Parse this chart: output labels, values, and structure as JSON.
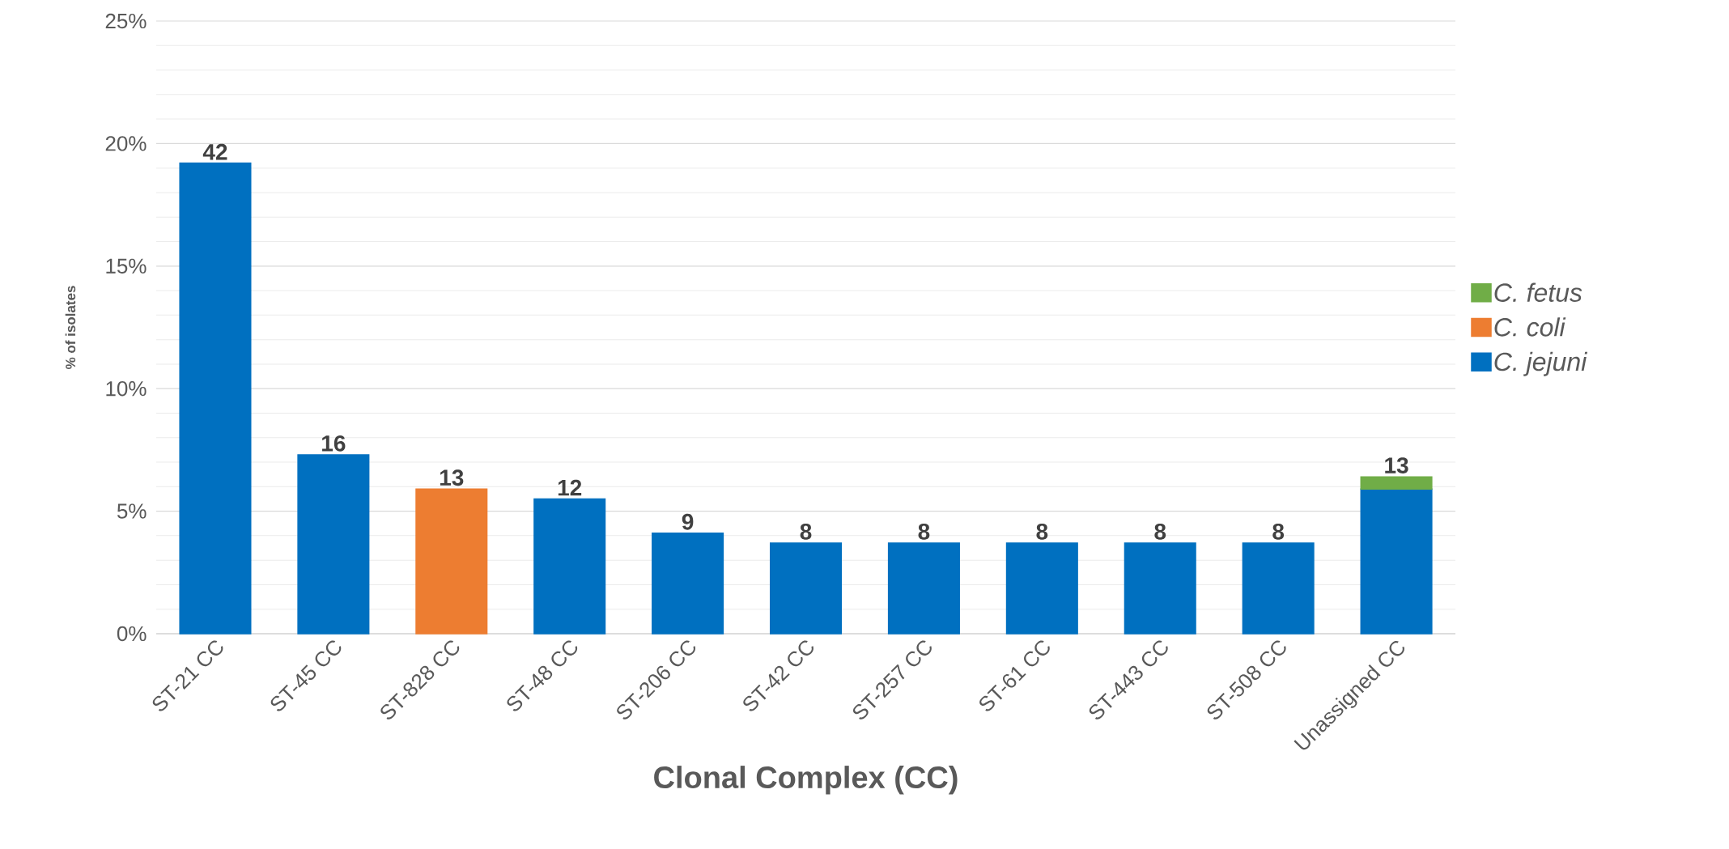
{
  "chart_data": {
    "type": "bar",
    "stacked": true,
    "xlabel": "Clonal Complex (CC)",
    "ylabel": "% of isolates",
    "categories": [
      "ST-21 CC",
      "ST-45 CC",
      "ST-828 CC",
      "ST-48 CC",
      "ST-206 CC",
      "ST-42 CC",
      "ST-257 CC",
      "ST-61 CC",
      "ST-443 CC",
      "ST-508 CC",
      "Unassigned CC"
    ],
    "series": [
      {
        "name": "C. jejuni",
        "color": "#0070c0",
        "values": [
          19.2,
          7.3,
          null,
          5.5,
          4.1,
          3.7,
          3.7,
          3.7,
          3.7,
          3.7,
          5.9
        ]
      },
      {
        "name": "C. coli",
        "color": "#ed7d31",
        "values": [
          null,
          null,
          5.9,
          null,
          null,
          null,
          null,
          null,
          null,
          null,
          null
        ]
      },
      {
        "name": "C. fetus",
        "color": "#70ad47",
        "values": [
          null,
          null,
          null,
          null,
          null,
          null,
          null,
          null,
          null,
          null,
          0.5
        ]
      }
    ],
    "annotations": [
      {
        "text": "42",
        "x": "ST-21 CC",
        "y": 19.2
      },
      {
        "text": "16",
        "x": "ST-45 CC",
        "y": 7.3
      },
      {
        "text": "13",
        "x": "ST-828 CC",
        "y": 5.9
      },
      {
        "text": "12",
        "x": "ST-48 CC",
        "y": 5.5
      },
      {
        "text": "9",
        "x": "ST-206 CC",
        "y": 4.1
      },
      {
        "text": "8",
        "x": "ST-42 CC",
        "y": 3.7
      },
      {
        "text": "8",
        "x": "ST-257 CC",
        "y": 3.7
      },
      {
        "text": "8",
        "x": "ST-61 CC",
        "y": 3.7
      },
      {
        "text": "8",
        "x": "ST-443 CC",
        "y": 3.7
      },
      {
        "text": "8",
        "x": "ST-508 CC",
        "y": 3.7
      },
      {
        "text": "13",
        "x": "Unassigned CC",
        "y": 6.4
      }
    ],
    "ylim": [
      0,
      25
    ],
    "yticks": [
      {
        "value": 0,
        "label": "0%"
      },
      {
        "value": 5,
        "label": "5%"
      },
      {
        "value": 10,
        "label": "10%"
      },
      {
        "value": 15,
        "label": "15%"
      },
      {
        "value": 20,
        "label": "20%"
      },
      {
        "value": 25,
        "label": "25%"
      }
    ],
    "grid": "y",
    "legend": "right"
  }
}
